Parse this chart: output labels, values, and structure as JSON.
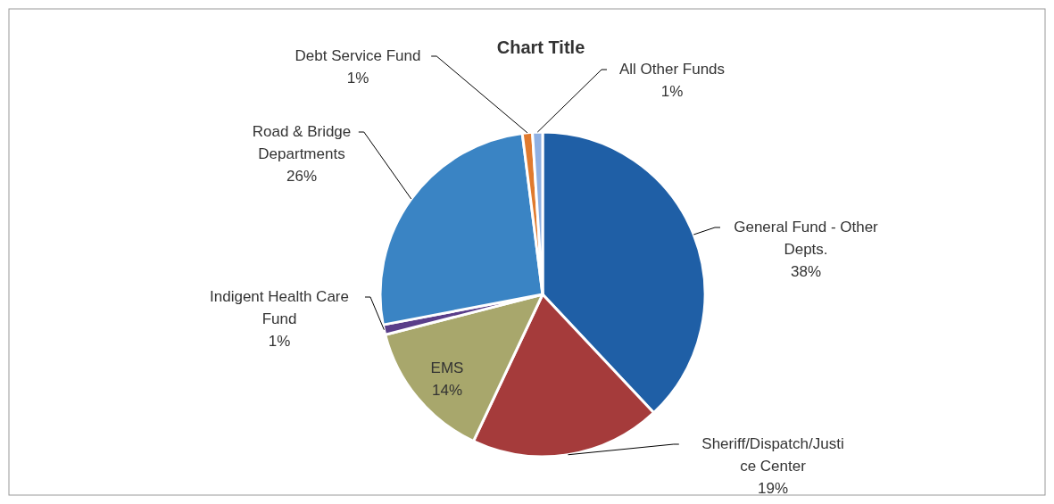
{
  "chart_data": {
    "type": "pie",
    "title": "Chart Title",
    "categories": [
      "General Fund - Other Depts.",
      "Sheriff/Dispatch/Justice Center",
      "EMS",
      "Indigent Health Care Fund",
      "Road & Bridge Departments",
      "Debt Service Fund",
      "All Other Funds"
    ],
    "values": [
      38,
      19,
      14,
      1,
      26,
      1,
      1
    ],
    "colors": [
      "#1f5fa6",
      "#a53b3b",
      "#a8a76c",
      "#5a3e8a",
      "#3a84c4",
      "#e07a2e",
      "#8fb0e2"
    ],
    "value_labels": [
      "38%",
      "19%",
      "14%",
      "1%",
      "26%",
      "1%",
      "1%"
    ]
  }
}
